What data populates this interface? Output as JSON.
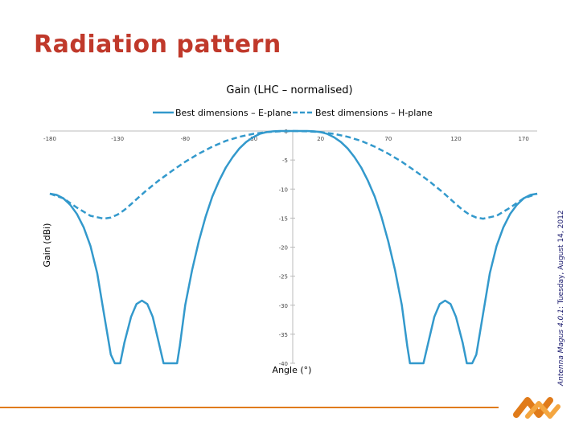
{
  "slide": {
    "title": "Radiation pattern",
    "software_name": "Antenna Magus 4.0.1",
    "software_date": ": Tuesday, August 14, 2012"
  },
  "colors": {
    "series": "#3399cc",
    "title": "#c0392b",
    "accent": "#e07b1a"
  },
  "chart_data": {
    "type": "line",
    "title": "Gain (LHC – normalised)",
    "xlabel": "Angle (°)",
    "ylabel": "Gain (dBi)",
    "xlim": [
      -180,
      180
    ],
    "ylim": [
      -40,
      0
    ],
    "x_ticks": [
      -180,
      -130,
      -80,
      -30,
      20,
      70,
      120,
      170
    ],
    "y_ticks": [
      0,
      -5,
      -10,
      -15,
      -20,
      -25,
      -30,
      -35,
      -40
    ],
    "x_tick_labels": [
      "-180",
      "-130",
      "-80",
      "-30",
      "20",
      "70",
      "120",
      "170"
    ],
    "y_tick_labels": [
      "0",
      "-5",
      "-10",
      "-15",
      "-20",
      "-25",
      "-30",
      "-35",
      "-40"
    ],
    "legend_placement": "top",
    "grid": false,
    "series": [
      {
        "name": "Best dimensions – E-plane",
        "style": "solid",
        "x": [
          -180,
          -175,
          -170,
          -165,
          -160,
          -155,
          -150,
          -145,
          -140,
          -135,
          -132,
          -130,
          -128,
          -125,
          -120,
          -116,
          -112,
          -108,
          -104,
          -100,
          -96,
          -92,
          -90,
          -88,
          -86,
          -84,
          -80,
          -75,
          -70,
          -65,
          -60,
          -55,
          -50,
          -45,
          -40,
          -35,
          -30,
          -25,
          -20,
          -15,
          -10,
          -5,
          0,
          5,
          10,
          15,
          20,
          25,
          30,
          35,
          40,
          45,
          50,
          55,
          60,
          65,
          70,
          75,
          80,
          84,
          86,
          88,
          90,
          92,
          96,
          100,
          104,
          108,
          112,
          116,
          120,
          125,
          128,
          130,
          132,
          135,
          140,
          145,
          150,
          155,
          160,
          165,
          170,
          175,
          180
        ],
        "values": [
          -10.8,
          -11.0,
          -11.6,
          -12.7,
          -14.3,
          -16.6,
          -19.8,
          -24.5,
          -31.5,
          -38.5,
          -40,
          -40,
          -40,
          -36.5,
          -32.0,
          -29.8,
          -29.2,
          -29.8,
          -32.0,
          -36.0,
          -40,
          -40,
          -40,
          -40,
          -40,
          -37.0,
          -30.0,
          -24.0,
          -19.0,
          -14.8,
          -11.3,
          -8.6,
          -6.3,
          -4.5,
          -3.0,
          -1.9,
          -1.1,
          -0.5,
          -0.2,
          -0.05,
          0,
          0,
          0,
          0,
          0,
          -0.05,
          -0.2,
          -0.5,
          -1.1,
          -1.9,
          -3.0,
          -4.5,
          -6.3,
          -8.6,
          -11.3,
          -14.8,
          -19.0,
          -24.0,
          -30.0,
          -37.0,
          -40,
          -40,
          -40,
          -40,
          -40,
          -36.0,
          -32.0,
          -29.8,
          -29.2,
          -29.8,
          -32.0,
          -36.5,
          -40,
          -40,
          -40,
          -38.5,
          -31.5,
          -24.5,
          -19.8,
          -16.6,
          -14.3,
          -12.7,
          -11.6,
          -11.0,
          -10.8
        ]
      },
      {
        "name": "Best dimensions – H-plane",
        "style": "dashed",
        "x": [
          -180,
          -170,
          -160,
          -150,
          -140,
          -135,
          -130,
          -125,
          -120,
          -110,
          -100,
          -90,
          -80,
          -70,
          -60,
          -50,
          -40,
          -30,
          -20,
          -10,
          0,
          10,
          20,
          30,
          40,
          50,
          60,
          70,
          80,
          90,
          100,
          110,
          120,
          125,
          130,
          135,
          140,
          150,
          160,
          170,
          180
        ],
        "values": [
          -10.8,
          -11.6,
          -13.2,
          -14.6,
          -15.1,
          -14.9,
          -14.4,
          -13.6,
          -12.6,
          -10.5,
          -8.6,
          -6.9,
          -5.3,
          -3.9,
          -2.7,
          -1.7,
          -1.0,
          -0.5,
          -0.2,
          -0.05,
          0,
          -0.05,
          -0.2,
          -0.5,
          -1.0,
          -1.7,
          -2.7,
          -3.9,
          -5.3,
          -6.9,
          -8.6,
          -10.5,
          -12.6,
          -13.6,
          -14.4,
          -14.9,
          -15.1,
          -14.6,
          -13.2,
          -11.6,
          -10.8
        ]
      }
    ]
  }
}
